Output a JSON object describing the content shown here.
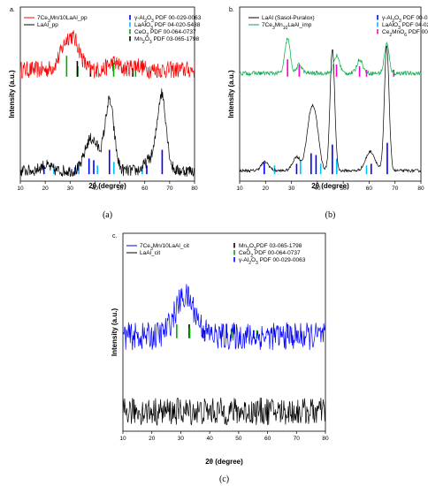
{
  "chart_data": [
    {
      "panel": "a.",
      "caption": "(a)",
      "type": "line",
      "xlabel": "2θ (degree)",
      "ylabel": "Intensity (a.u.)",
      "xlim": [
        10,
        80
      ],
      "xticks": [
        10,
        20,
        30,
        40,
        50,
        60,
        70,
        80
      ],
      "ylim": [
        0,
        1
      ],
      "series": [
        {
          "name": "7Ce3Mn/10LaAl_pp",
          "color": "#ff0000",
          "offset": 0.64,
          "peaks": [
            [
              29.5,
              0.18,
              3.0
            ],
            [
              33,
              0.05,
              2.0
            ],
            [
              47.5,
              0.04,
              2.0
            ],
            [
              56.5,
              0.03,
              2.0
            ]
          ],
          "noise": 0.05
        },
        {
          "name": "LaAl_pp",
          "color": "#000000",
          "offset": 0.06,
          "peaks": [
            [
              37.5,
              0.14,
              2.0
            ],
            [
              40.5,
              0.1,
              2.0
            ],
            [
              45.8,
              0.4,
              1.8
            ],
            [
              66.8,
              0.44,
              1.8
            ],
            [
              62,
              0.06,
              2.0
            ],
            [
              20,
              0.03,
              2.0
            ]
          ],
          "noise": 0.035
        }
      ],
      "references": [
        {
          "name": "γ-Al2O3 PDF 00-029-0063",
          "color": "#0000ff",
          "lines": [
            [
              19.5,
              0.05
            ],
            [
              32,
              0.04
            ],
            [
              37.6,
              0.09
            ],
            [
              39.5,
              0.08
            ],
            [
              45.8,
              0.14
            ],
            [
              60.8,
              0.05
            ],
            [
              67,
              0.14
            ]
          ],
          "base": 0.04
        },
        {
          "name": "LaAlO3 PDF 04-020-5438",
          "color": "#00bfff",
          "lines": [
            [
              23.5,
              0.04
            ],
            [
              33.5,
              0.07
            ],
            [
              41,
              0.05
            ],
            [
              47.6,
              0.07
            ],
            [
              59,
              0.04
            ]
          ],
          "base": 0.04
        },
        {
          "name": "CeO2 PDF 00-064-0737",
          "color": "#00aa00",
          "lines": [
            [
              28.6,
              0.12
            ],
            [
              33.1,
              0.06
            ],
            [
              47.5,
              0.08
            ],
            [
              56.3,
              0.06
            ]
          ],
          "base": 0.6
        },
        {
          "name": "Mn2O3 PDF 03-065-1798",
          "color": "#000000",
          "lines": [
            [
              32.9,
              0.09
            ],
            [
              38.2,
              0.05
            ],
            [
              55.2,
              0.05
            ]
          ],
          "base": 0.6
        }
      ]
    },
    {
      "panel": "b.",
      "caption": "(b)",
      "type": "line",
      "xlabel": "2θ (degree)",
      "ylabel": "Intensity (a.u.)",
      "xlim": [
        10,
        80
      ],
      "xticks": [
        10,
        20,
        30,
        40,
        50,
        60,
        70,
        80
      ],
      "ylim": [
        0,
        1
      ],
      "series": [
        {
          "name": "LaAl (Sasol-Puralox)",
          "color": "#000000",
          "offset": 0.06,
          "peaks": [
            [
              19.8,
              0.05,
              1.5
            ],
            [
              32,
              0.08,
              1.5
            ],
            [
              37.2,
              0.27,
              1.5
            ],
            [
              39.4,
              0.23,
              1.4
            ],
            [
              45.8,
              0.7,
              0.9
            ],
            [
              60.5,
              0.11,
              1.8
            ],
            [
              66.8,
              0.72,
              0.9
            ]
          ],
          "noise": 0.008
        },
        {
          "name": "7Ce3Mn10LaAl_imp",
          "color": "#00aa44",
          "offset": 0.62,
          "peaks": [
            [
              28.5,
              0.2,
              1.0
            ],
            [
              33.1,
              0.05,
              1.0
            ],
            [
              47.5,
              0.1,
              1.1
            ],
            [
              56.4,
              0.08,
              1.1
            ],
            [
              66.8,
              0.17,
              0.9
            ]
          ],
          "noise": 0.012
        }
      ],
      "references": [
        {
          "name": "γ-Al2O3 PDF 00-029-0063",
          "color": "#0000ff",
          "lines": [
            [
              19.5,
              0.07
            ],
            [
              32,
              0.06
            ],
            [
              37.6,
              0.12
            ],
            [
              39.5,
              0.11
            ],
            [
              45.8,
              0.17
            ],
            [
              60.8,
              0.06
            ],
            [
              67,
              0.18
            ]
          ],
          "base": 0.04
        },
        {
          "name": "LaAlO3 PDF 04-020-5438",
          "color": "#00bfff",
          "lines": [
            [
              23.5,
              0.05
            ],
            [
              33.5,
              0.08
            ],
            [
              41.3,
              0.06
            ],
            [
              47.5,
              0.09
            ],
            [
              59,
              0.05
            ]
          ],
          "base": 0.04
        },
        {
          "name": "Ce2MnO6 PDF 00-064-0204",
          "color": "#ff00cc",
          "lines": [
            [
              28.5,
              0.1
            ],
            [
              33,
              0.07
            ],
            [
              47.4,
              0.07
            ],
            [
              56.3,
              0.06
            ],
            [
              59,
              0.04
            ],
            [
              69.5,
              0.04
            ]
          ],
          "base": 0.6
        }
      ]
    },
    {
      "panel": "c.",
      "caption": "(c)",
      "type": "line",
      "xlabel": "2θ (degree)",
      "ylabel": "Intensity (a.u.)",
      "xlim": [
        10,
        80
      ],
      "xticks": [
        10,
        20,
        30,
        40,
        50,
        60,
        70,
        80
      ],
      "ylim": [
        0,
        1
      ],
      "series": [
        {
          "name": "7Ce3Mn/10LaAl_cit",
          "color": "#0000ff",
          "offset": 0.48,
          "peaks": [
            [
              31.5,
              0.2,
              3.5
            ]
          ],
          "noise": 0.07
        },
        {
          "name": "LaAl_cit",
          "color": "#000000",
          "offset": 0.1,
          "peaks": [],
          "noise": 0.07
        }
      ],
      "references": [
        {
          "name": "Mn2O3PDF 03-065-1798",
          "color": "#000000",
          "lines": [
            [
              32.9,
              0.07
            ],
            [
              38.2,
              0.04
            ],
            [
              55.2,
              0.04
            ]
          ],
          "base": 0.47
        },
        {
          "name": "CeO2 PDF 00-064-0737",
          "color": "#00aa00",
          "lines": [
            [
              28.6,
              0.07
            ],
            [
              33.1,
              0.05
            ],
            [
              47.5,
              0.05
            ],
            [
              56.3,
              0.04
            ]
          ],
          "base": 0.47
        },
        {
          "name": "γ-Al2O3 PDF 00-029-0063",
          "color": "#0000ff",
          "lines": [
            [
              37.6,
              0.05
            ],
            [
              45.8,
              0.07
            ],
            [
              67,
              0.07
            ]
          ],
          "base": 0.47
        }
      ]
    }
  ]
}
